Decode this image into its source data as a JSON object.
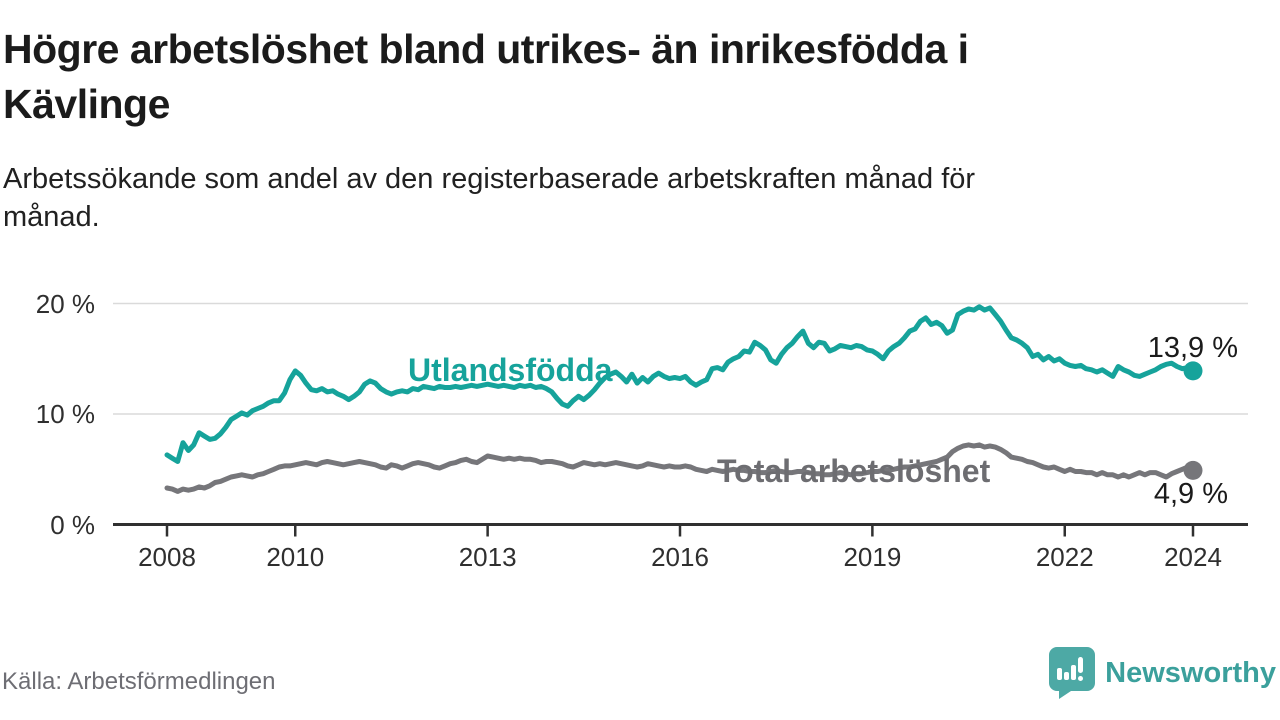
{
  "title_lines": [
    "Högre arbetslöshet bland utrikes- än inrikesfödda i",
    "Kävlinge"
  ],
  "subtitle_lines": [
    "Arbetssökande som andel av den registerbaserade arbetskraften månad för",
    "månad."
  ],
  "source": "Källa: Arbetsförmedlingen",
  "branding": {
    "name": "Newsworthy",
    "icon": "speech-bubble-bar-chart-icon",
    "icon_color": "#4da9a5",
    "text_color": "#3ba09c"
  },
  "colors": {
    "foreign_born_line": "#16a39b",
    "total_line": "#76767a",
    "total_label": "#6d6d71",
    "grid": "#dadada",
    "axis": "#303030",
    "tick_text": "#2f2f2f",
    "title_text": "#1b1b1b",
    "muted_text": "#6e6e74"
  },
  "chart_data": {
    "type": "line",
    "title": "Högre arbetslöshet bland utrikes- än inrikesfödda i Kävlinge",
    "subtitle": "Arbetssökande som andel av den registerbaserade arbetskraften månad för månad.",
    "unit": "%",
    "grid": "horizontal",
    "legend": "inline-labels",
    "x_axis": {
      "ticks": [
        2008,
        2010,
        2013,
        2016,
        2019,
        2022,
        2024
      ],
      "range": [
        2007.15,
        2024.85
      ]
    },
    "y_axis": {
      "ticks": [
        "0 %",
        "10 %",
        "20 %"
      ],
      "tick_values": [
        0,
        10,
        20
      ],
      "range": [
        0,
        21.7
      ]
    },
    "start_year": 2008,
    "interval_months": 1,
    "series": [
      {
        "name": "Utlandsfödda",
        "color": "#16a39b",
        "end_label": "13,9 %",
        "end_value": 13.9,
        "values": [
          6.3,
          6.0,
          5.7,
          7.4,
          6.7,
          7.2,
          8.3,
          8.0,
          7.7,
          7.8,
          8.2,
          8.8,
          9.5,
          9.8,
          10.1,
          9.9,
          10.3,
          10.5,
          10.7,
          11.0,
          11.2,
          11.2,
          11.9,
          13.1,
          13.9,
          13.5,
          12.8,
          12.2,
          12.1,
          12.3,
          12.0,
          12.1,
          11.8,
          11.6,
          11.3,
          11.6,
          12.0,
          12.7,
          13.0,
          12.8,
          12.3,
          12.0,
          11.8,
          12.0,
          12.1,
          12.0,
          12.3,
          12.2,
          12.5,
          12.4,
          12.3,
          12.5,
          12.4,
          12.4,
          12.5,
          12.4,
          12.5,
          12.6,
          12.5,
          12.6,
          12.7,
          12.6,
          12.5,
          12.6,
          12.5,
          12.4,
          12.6,
          12.5,
          12.6,
          12.4,
          12.5,
          12.3,
          12.0,
          11.4,
          10.9,
          10.7,
          11.2,
          11.6,
          11.3,
          11.7,
          12.2,
          12.8,
          13.3,
          13.6,
          13.8,
          13.4,
          12.9,
          13.6,
          12.8,
          13.3,
          12.9,
          13.4,
          13.7,
          13.4,
          13.2,
          13.3,
          13.2,
          13.4,
          12.9,
          12.6,
          12.9,
          13.1,
          14.1,
          14.2,
          14.0,
          14.7,
          15.0,
          15.2,
          15.7,
          15.6,
          16.5,
          16.2,
          15.8,
          14.9,
          14.6,
          15.4,
          16.0,
          16.4,
          17.0,
          17.5,
          16.4,
          16.0,
          16.5,
          16.4,
          15.7,
          15.9,
          16.2,
          16.1,
          16.0,
          16.2,
          16.1,
          15.8,
          15.7,
          15.4,
          15.0,
          15.7,
          16.1,
          16.4,
          16.9,
          17.5,
          17.7,
          18.4,
          18.7,
          18.1,
          18.3,
          18.0,
          17.3,
          17.6,
          19.0,
          19.3,
          19.5,
          19.4,
          19.7,
          19.4,
          19.6,
          19.0,
          18.4,
          17.6,
          16.9,
          16.7,
          16.4,
          16.0,
          15.2,
          15.4,
          14.9,
          15.2,
          14.8,
          15.0,
          14.6,
          14.4,
          14.3,
          14.4,
          14.1,
          14.0,
          13.8,
          14.0,
          13.7,
          13.4,
          14.3,
          14.0,
          13.8,
          13.5,
          13.4,
          13.6,
          13.8,
          14.0,
          14.3,
          14.5,
          14.6,
          14.3,
          14.1,
          14.2,
          13.9
        ]
      },
      {
        "name": "Total arbetslöshet",
        "color": "#76767a",
        "end_label": "4,9 %",
        "end_value": 4.9,
        "values": [
          3.3,
          3.2,
          3.0,
          3.2,
          3.1,
          3.2,
          3.4,
          3.3,
          3.5,
          3.8,
          3.9,
          4.1,
          4.3,
          4.4,
          4.5,
          4.4,
          4.3,
          4.5,
          4.6,
          4.8,
          5.0,
          5.2,
          5.3,
          5.3,
          5.4,
          5.5,
          5.6,
          5.5,
          5.4,
          5.6,
          5.7,
          5.6,
          5.5,
          5.4,
          5.5,
          5.6,
          5.7,
          5.6,
          5.5,
          5.4,
          5.2,
          5.1,
          5.4,
          5.3,
          5.1,
          5.3,
          5.5,
          5.6,
          5.5,
          5.4,
          5.2,
          5.1,
          5.3,
          5.5,
          5.6,
          5.8,
          5.9,
          5.7,
          5.6,
          5.9,
          6.2,
          6.1,
          6.0,
          5.9,
          6.0,
          5.9,
          6.0,
          5.9,
          5.9,
          5.8,
          5.6,
          5.7,
          5.7,
          5.6,
          5.5,
          5.3,
          5.2,
          5.4,
          5.6,
          5.5,
          5.4,
          5.5,
          5.4,
          5.5,
          5.6,
          5.5,
          5.4,
          5.3,
          5.2,
          5.3,
          5.5,
          5.4,
          5.3,
          5.2,
          5.3,
          5.2,
          5.2,
          5.3,
          5.2,
          5.0,
          4.9,
          4.8,
          5.0,
          4.9,
          4.8,
          4.9,
          5.0,
          4.9,
          4.9,
          4.8,
          4.8,
          4.7,
          4.7,
          4.8,
          4.9,
          4.8,
          4.7,
          4.7,
          4.8,
          4.8,
          4.7,
          4.6,
          4.6,
          4.5,
          4.5,
          4.6,
          4.7,
          4.6,
          4.5,
          4.6,
          4.6,
          4.7,
          4.8,
          4.8,
          4.9,
          4.9,
          5.0,
          5.1,
          5.2,
          5.2,
          5.3,
          5.4,
          5.5,
          5.6,
          5.7,
          5.9,
          6.1,
          6.6,
          6.9,
          7.1,
          7.2,
          7.1,
          7.2,
          7.0,
          7.1,
          7.0,
          6.8,
          6.5,
          6.1,
          6.0,
          5.9,
          5.7,
          5.6,
          5.4,
          5.2,
          5.1,
          5.2,
          5.0,
          4.8,
          5.0,
          4.8,
          4.8,
          4.7,
          4.7,
          4.5,
          4.7,
          4.5,
          4.5,
          4.3,
          4.5,
          4.3,
          4.5,
          4.7,
          4.5,
          4.7,
          4.7,
          4.5,
          4.3,
          4.6,
          4.8,
          5.0,
          5.2,
          4.9
        ]
      }
    ]
  }
}
